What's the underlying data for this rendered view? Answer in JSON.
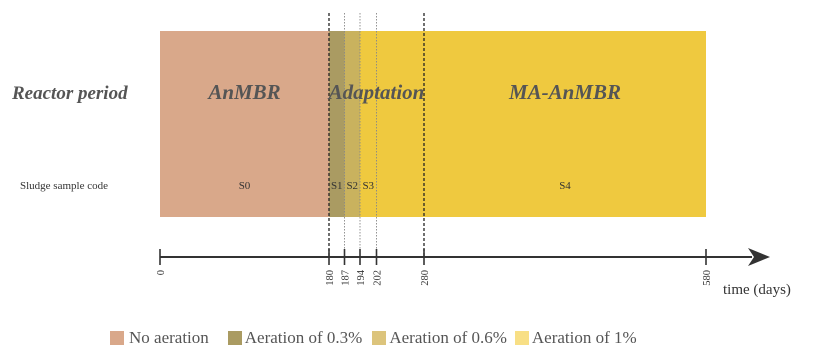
{
  "row_labels": {
    "reactor_period": "Reactor period",
    "sludge_sample_code": "Sludge sample code"
  },
  "periods": [
    {
      "label": "AnMBR",
      "start": 0,
      "end": 180,
      "color": "#d9a88a"
    },
    {
      "label": "Adaptation",
      "start": 180,
      "end": 280,
      "color": "#efc93f"
    },
    {
      "label": "MA-AnMBR",
      "start": 280,
      "end": 580,
      "color": "#efc93f"
    }
  ],
  "aeration_segments": [
    {
      "start": 0,
      "end": 180,
      "level": "No aeration",
      "color": "#d9a88a"
    },
    {
      "start": 180,
      "end": 187,
      "level": "Aeration of 0.3%",
      "color": "#aa9b62"
    },
    {
      "start": 187,
      "end": 194,
      "level": "Aeration of 0.6%",
      "color": "#c9b25e"
    },
    {
      "start": 194,
      "end": 580,
      "level": "Aeration of 1%",
      "color": "#efc93f"
    }
  ],
  "samples": [
    {
      "code": "S0",
      "day_position": 90
    },
    {
      "code": "S1",
      "day_position": 183.5
    },
    {
      "code": "S2",
      "day_position": 190.5
    },
    {
      "code": "S3",
      "day_position": 198
    },
    {
      "code": "S4",
      "day_position": 430
    }
  ],
  "axis": {
    "label": "time (days)",
    "min": 0,
    "max": 580,
    "ticks": [
      "0",
      "180",
      "187",
      "194",
      "202",
      "280",
      "580"
    ]
  },
  "dashed_markers": [
    {
      "day": 180,
      "style": "bold"
    },
    {
      "day": 187,
      "style": "light"
    },
    {
      "day": 194,
      "style": "light"
    },
    {
      "day": 202,
      "style": "light"
    },
    {
      "day": 280,
      "style": "bold"
    }
  ],
  "legend": [
    {
      "label": "No aeration",
      "color": "#d9a88a"
    },
    {
      "label": "Aeration of 0.3%",
      "color": "#aa9b62"
    },
    {
      "label": "Aeration of 0.6%",
      "color": "#dcc47c"
    },
    {
      "label": "Aeration of 1%",
      "color": "#f8df85"
    }
  ]
}
